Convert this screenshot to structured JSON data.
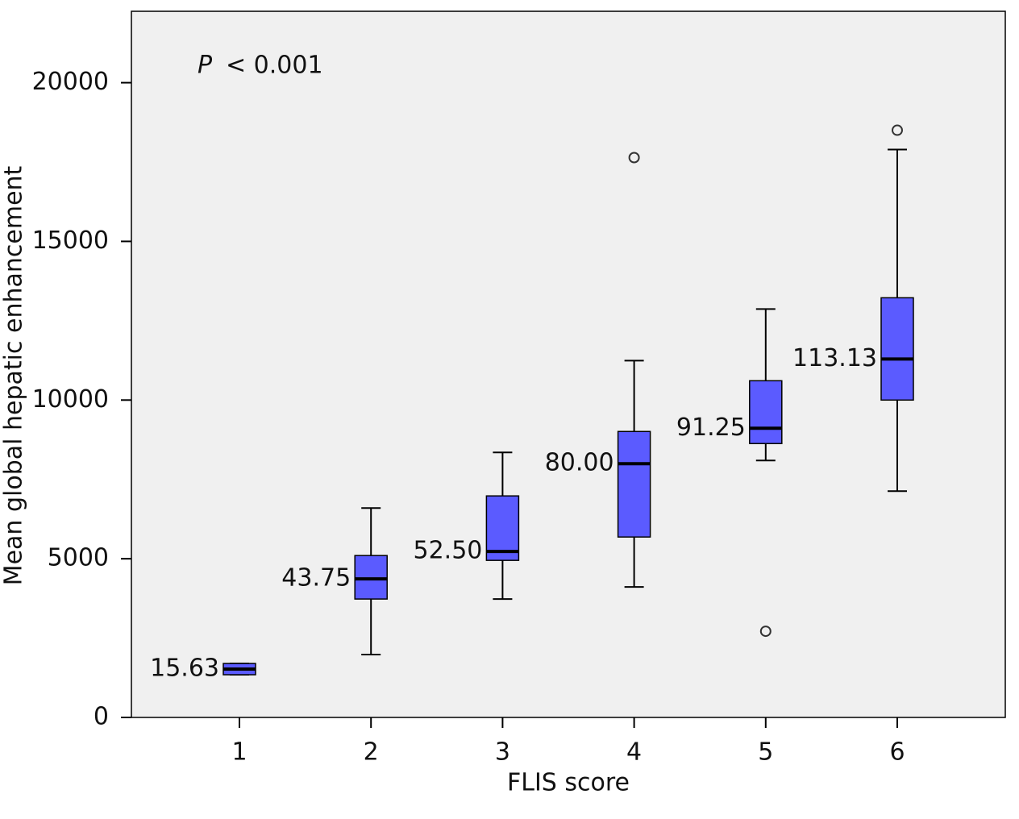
{
  "chart_data": {
    "type": "box",
    "x_label": "FLIS score",
    "y_label": "Mean global hepatic enhancement",
    "annotation": {
      "italic": "P",
      "text": "< 0.001"
    },
    "categories": [
      "1",
      "2",
      "3",
      "4",
      "5",
      "6"
    ],
    "boxes": [
      {
        "low": 1345,
        "q1": 1345,
        "median": 1523,
        "q3": 1700,
        "high": 1700,
        "outliers": []
      },
      {
        "low": 1980,
        "q1": 3731,
        "median": 4365,
        "q3": 5101,
        "high": 6599,
        "outliers": []
      },
      {
        "low": 3731,
        "q1": 4949,
        "median": 5228,
        "q3": 6980,
        "high": 8350,
        "outliers": []
      },
      {
        "low": 4112,
        "q1": 5685,
        "median": 7995,
        "q3": 9010,
        "high": 11243,
        "outliers": [
          17640
        ]
      },
      {
        "low": 8096,
        "q1": 8629,
        "median": 9112,
        "q3": 10609,
        "high": 12868,
        "outliers": [
          2716
        ]
      },
      {
        "low": 7132,
        "q1": 10000,
        "median": 11294,
        "q3": 13223,
        "high": 17893,
        "outliers": [
          18502
        ]
      }
    ],
    "box_labels": [
      "15.63",
      "43.75",
      "52.50",
      "80.00",
      "91.25",
      "113.13"
    ],
    "color": "#5b5bff",
    "ylim": [
      0,
      22250
    ],
    "yticks": [
      0,
      5000,
      10000,
      15000,
      20000
    ]
  }
}
